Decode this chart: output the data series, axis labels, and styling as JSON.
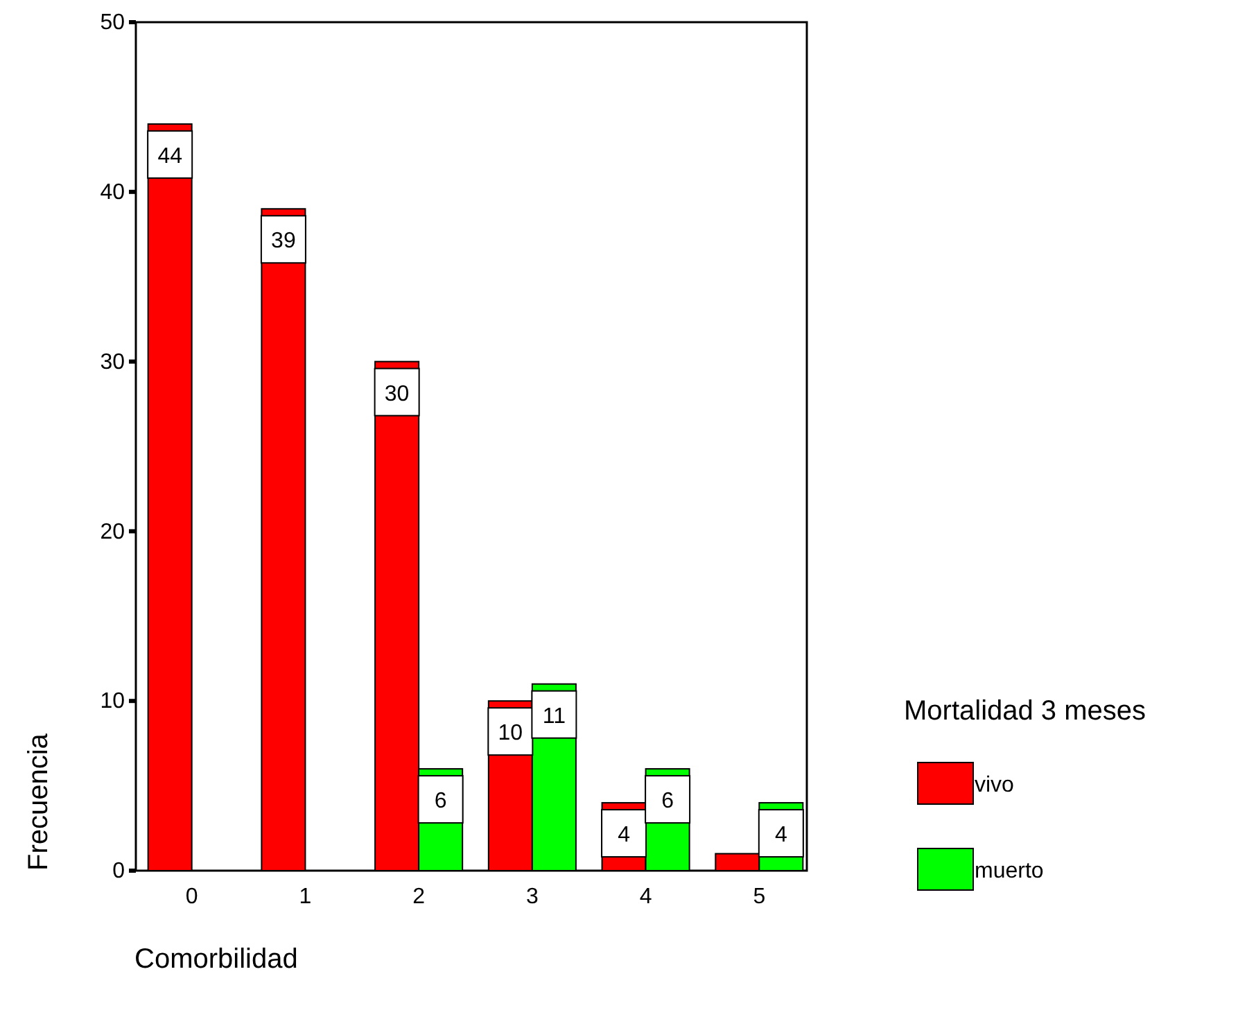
{
  "chart_data": {
    "type": "bar",
    "xlabel": "Comorbilidad",
    "ylabel": "Frecuencia",
    "legend_title": "Mortalidad 3 meses",
    "categories": [
      "0",
      "1",
      "2",
      "3",
      "4",
      "5"
    ],
    "series": [
      {
        "name": "vivo",
        "color": "#ff0000",
        "values": [
          44,
          39,
          30,
          10,
          4,
          1
        ],
        "value_labels": [
          "44",
          "39",
          "30",
          "10",
          "4",
          null
        ]
      },
      {
        "name": "muerto",
        "color": "#00ff00",
        "values": [
          0,
          0,
          6,
          11,
          6,
          4
        ],
        "value_labels": [
          null,
          null,
          "6",
          "11",
          "6",
          "4"
        ]
      }
    ],
    "ylim": [
      0,
      50
    ],
    "yticks": [
      0,
      10,
      20,
      30,
      40,
      50
    ],
    "grid": false,
    "legend": "right"
  }
}
